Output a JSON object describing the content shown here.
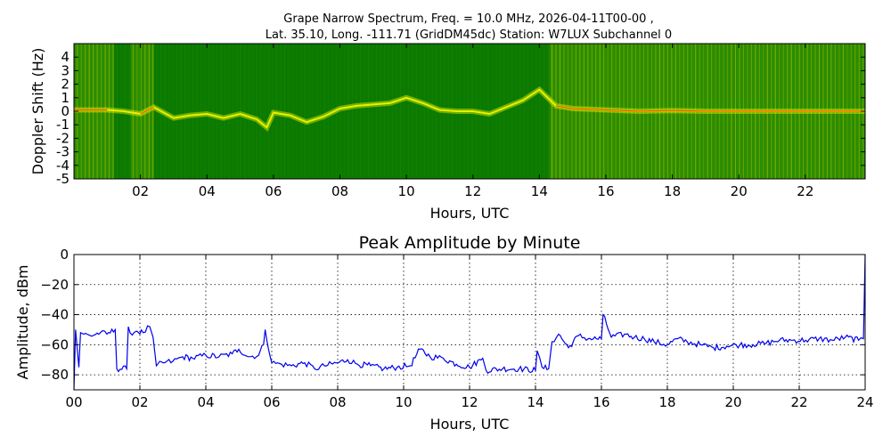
{
  "figure": {
    "title_line1": "Grape Narrow Spectrum, Freq. = 10.0 MHz, 2026-04-11T00-00 ,",
    "title_line2": "Lat.  35.10, Long. -111.71 (GridDM45dc) Station: W7LUX Subchannel 0"
  },
  "colors": {
    "spectrogram_bg": "#0a7a00",
    "trace_yellow": "#e6f000",
    "trace_red": "#ff2a00",
    "amplitude_line": "#0000ee",
    "grid": "#000000"
  },
  "chart_data": [
    {
      "type": "heatmap",
      "title": "",
      "xlabel": "Hours, UTC",
      "ylabel": "Doppler Shift (Hz)",
      "xlim": [
        0,
        23.8
      ],
      "ylim": [
        -5,
        5
      ],
      "x_ticks": [
        "02",
        "04",
        "06",
        "08",
        "10",
        "12",
        "14",
        "16",
        "18",
        "20",
        "22"
      ],
      "x_tick_values": [
        2,
        4,
        6,
        8,
        10,
        12,
        14,
        16,
        18,
        20,
        22
      ],
      "y_ticks": [
        "4",
        "3",
        "2",
        "1",
        "0",
        "-1",
        "-2",
        "-3",
        "-4",
        "-5"
      ],
      "y_tick_values": [
        4,
        3,
        2,
        1,
        0,
        -1,
        -2,
        -3,
        -4,
        -5
      ],
      "grid": false,
      "doppler_trace": {
        "hours": [
          0,
          1,
          1.5,
          2,
          2.4,
          3,
          3.5,
          4,
          4.5,
          5,
          5.5,
          5.8,
          6,
          6.5,
          7,
          7.5,
          8,
          8.5,
          9,
          9.5,
          10,
          10.5,
          11,
          11.5,
          12,
          12.5,
          13,
          13.5,
          14,
          14.5,
          15,
          16,
          17,
          18,
          19,
          20,
          21,
          22,
          23,
          23.8
        ],
        "hz": [
          0.1,
          0.1,
          0.0,
          -0.2,
          0.3,
          -0.5,
          -0.3,
          -0.2,
          -0.5,
          -0.2,
          -0.6,
          -1.2,
          -0.1,
          -0.3,
          -0.8,
          -0.4,
          0.2,
          0.4,
          0.5,
          0.6,
          1.0,
          0.6,
          0.1,
          0.0,
          0.0,
          -0.2,
          0.3,
          0.8,
          1.6,
          0.4,
          0.2,
          0.1,
          0.0,
          0.05,
          0.0,
          0.0,
          0.0,
          0.0,
          0.0,
          0.0
        ]
      },
      "bright_band_hours": [
        [
          0,
          1.2
        ],
        [
          1.7,
          2.4
        ],
        [
          14.3,
          23.8
        ]
      ]
    },
    {
      "type": "line",
      "title": "Peak Amplitude by Minute",
      "xlabel": "Hours, UTC",
      "ylabel": "Amplitude, dBm",
      "xlim": [
        0,
        24
      ],
      "ylim": [
        -90,
        0
      ],
      "x_ticks": [
        "00",
        "02",
        "04",
        "06",
        "08",
        "10",
        "12",
        "14",
        "16",
        "18",
        "20",
        "22",
        "24"
      ],
      "x_tick_values": [
        0,
        2,
        4,
        6,
        8,
        10,
        12,
        14,
        16,
        18,
        20,
        22,
        24
      ],
      "y_ticks": [
        "0",
        "−20",
        "−40",
        "−60",
        "−80"
      ],
      "y_tick_values": [
        0,
        -20,
        -40,
        -60,
        -80
      ],
      "grid": true,
      "series": [
        {
          "x": [
            0,
            0.05,
            0.15,
            0.2,
            0.3,
            0.5,
            0.8,
            1.0,
            1.25,
            1.3,
            1.6,
            1.65,
            1.7,
            1.9,
            2.1,
            2.3,
            2.4,
            2.5,
            2.7,
            3.0,
            3.3,
            3.6,
            4.0,
            4.4,
            4.8,
            5.0,
            5.3,
            5.6,
            5.75,
            5.8,
            6.0,
            6.3,
            6.6,
            7.0,
            7.3,
            7.6,
            8.0,
            8.3,
            8.6,
            9.0,
            9.4,
            9.8,
            10.2,
            10.5,
            10.8,
            11.2,
            11.6,
            12.0,
            12.4,
            12.5,
            13.0,
            13.5,
            14.0,
            14.05,
            14.2,
            14.4,
            14.5,
            14.7,
            15.0,
            15.3,
            15.6,
            16.0,
            16.05,
            16.3,
            16.7,
            17.0,
            17.3,
            17.6,
            18.0,
            18.3,
            18.6,
            19.0,
            19.4,
            19.8,
            20.2,
            20.6,
            21.0,
            21.4,
            21.8,
            22.2,
            22.6,
            23.0,
            23.4,
            23.8,
            23.95,
            24.0
          ],
          "values": [
            -92,
            -50,
            -75,
            -52,
            -53,
            -54,
            -52,
            -53,
            -50,
            -76,
            -76,
            -48,
            -52,
            -51,
            -52,
            -48,
            -55,
            -74,
            -72,
            -71,
            -68,
            -69,
            -67,
            -68,
            -66,
            -63,
            -68,
            -67,
            -60,
            -50,
            -72,
            -73,
            -74,
            -72,
            -76,
            -74,
            -72,
            -70,
            -73,
            -74,
            -76,
            -75,
            -74,
            -63,
            -68,
            -69,
            -73,
            -75,
            -69,
            -77,
            -76,
            -76,
            -77,
            -64,
            -75,
            -76,
            -58,
            -53,
            -62,
            -54,
            -56,
            -56,
            -40,
            -55,
            -53,
            -55,
            -56,
            -58,
            -60,
            -56,
            -58,
            -60,
            -62,
            -61,
            -60,
            -60,
            -59,
            -57,
            -57,
            -57,
            -56,
            -57,
            -55,
            -57,
            -56,
            0
          ]
        }
      ]
    }
  ]
}
